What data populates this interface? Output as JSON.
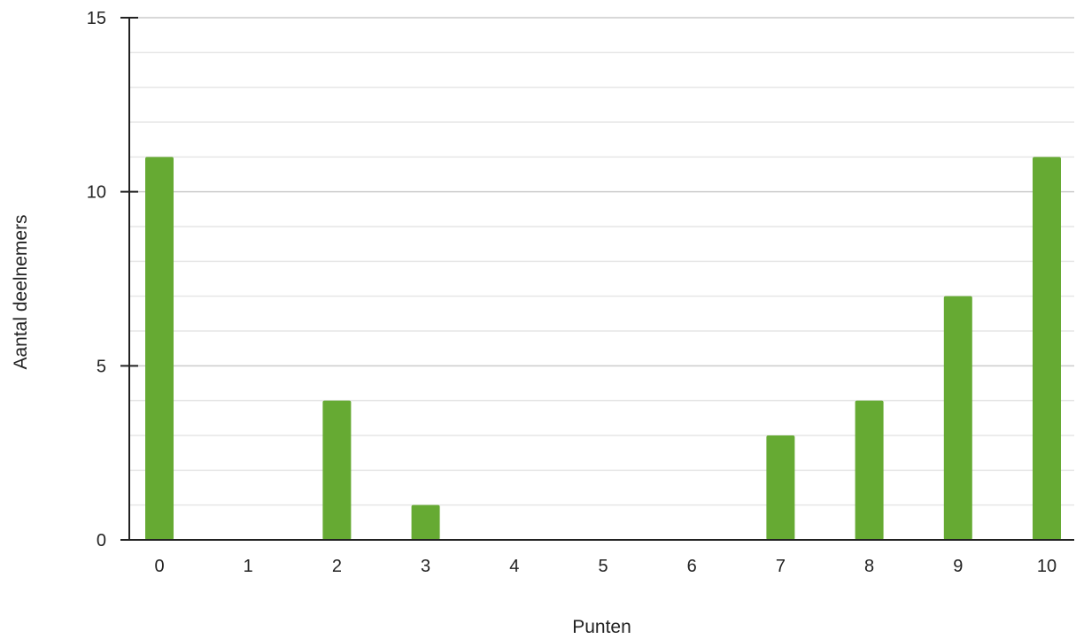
{
  "chart_data": {
    "type": "bar",
    "title": "",
    "xlabel": "Punten",
    "ylabel": "Aantal deelnemers",
    "categories": [
      "0",
      "1",
      "2",
      "3",
      "4",
      "5",
      "6",
      "7",
      "8",
      "9",
      "10"
    ],
    "values": [
      11,
      0,
      4,
      1,
      0,
      0,
      0,
      3,
      4,
      7,
      11
    ],
    "ylim": [
      0,
      15
    ],
    "yticks": [
      0,
      5,
      10,
      15
    ],
    "grid": "horizontal minor every 1, major every 5",
    "legend": "none",
    "colors": {
      "bar": "#66aa33",
      "grid_minor": "#e6e6e6",
      "grid_major": "#cccccc",
      "axis": "#222222"
    }
  }
}
